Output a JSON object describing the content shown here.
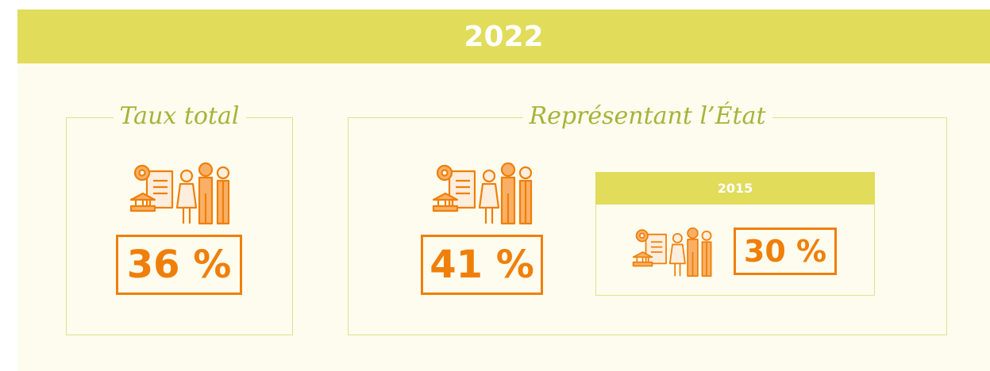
{
  "header": {
    "title": "2022"
  },
  "panels": [
    {
      "title": "Taux total",
      "value": "36 %"
    },
    {
      "title": "Représentant l’État",
      "value": "41 %",
      "inset": {
        "title": "2015",
        "value": "30 %"
      }
    }
  ]
}
